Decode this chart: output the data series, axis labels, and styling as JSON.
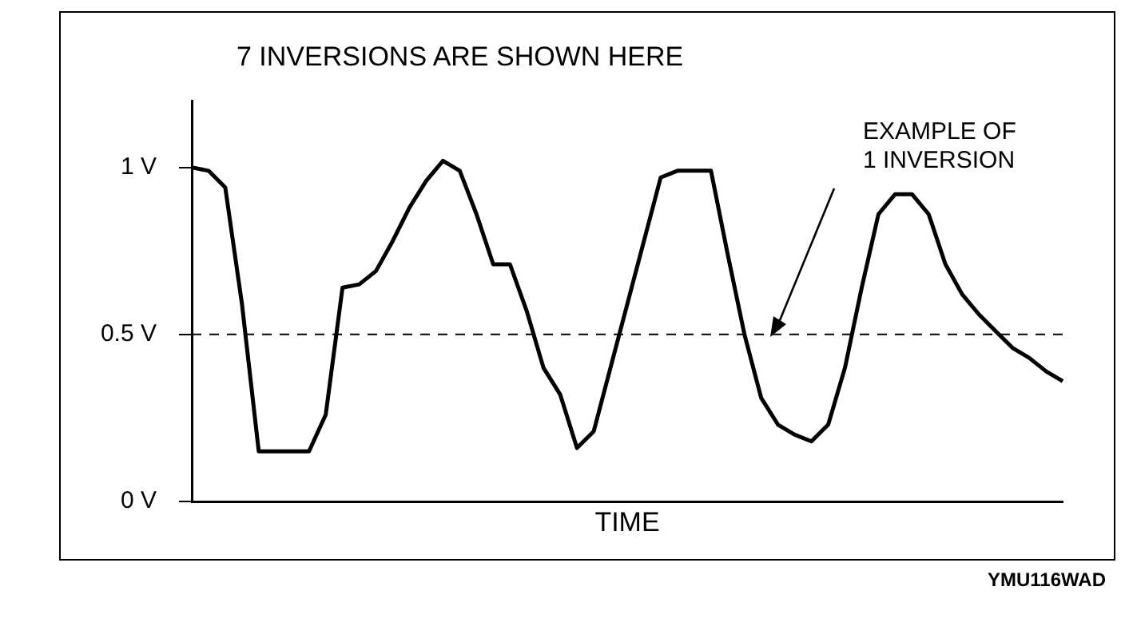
{
  "chart_data": {
    "type": "line",
    "title": "7 INVERSIONS ARE SHOWN HERE",
    "xlabel": "TIME",
    "categories": [
      null,
      null,
      null,
      null,
      null,
      null,
      null,
      null,
      null,
      null,
      null,
      null,
      null,
      null,
      null,
      null,
      null,
      null,
      null,
      null,
      null,
      null,
      null,
      null,
      null,
      null,
      null,
      null,
      null,
      null,
      null,
      null,
      null,
      null,
      null,
      null,
      null,
      null,
      null,
      null,
      null,
      null,
      null,
      null,
      null,
      null,
      null,
      null,
      null,
      null,
      null,
      null,
      null
    ],
    "series": [
      {
        "color": "#000000",
        "values": [
          1.0,
          0.99,
          0.94,
          0.59,
          0.15,
          0.15,
          0.15,
          0.15,
          0.26,
          0.64,
          0.65,
          0.69,
          0.78,
          0.88,
          0.96,
          1.02,
          0.99,
          0.86,
          0.71,
          0.71,
          0.57,
          0.4,
          0.32,
          0.16,
          0.21,
          0.4,
          0.59,
          0.78,
          0.97,
          0.99,
          0.99,
          0.99,
          0.74,
          0.5,
          0.31,
          0.23,
          0.2,
          0.18,
          0.23,
          0.4,
          0.64,
          0.86,
          0.92,
          0.92,
          0.86,
          0.71,
          0.62,
          0.56,
          0.51,
          0.46,
          0.43,
          0.39,
          0.36
        ]
      }
    ],
    "ylim": [
      0,
      1.2
    ],
    "yticks": [
      {
        "value": 0,
        "label": "0 V"
      },
      {
        "value": 0.5,
        "label": "0.5 V"
      },
      {
        "value": 1,
        "label": "1 V"
      }
    ],
    "ref_lines": [
      {
        "axis": "y",
        "value": 0.5,
        "line_style": "dashed",
        "color": "#000000"
      }
    ],
    "marker": "none",
    "annotations": [
      "EXAMPLE OF 1 INVERSION",
      "YMU116WAD"
    ]
  }
}
